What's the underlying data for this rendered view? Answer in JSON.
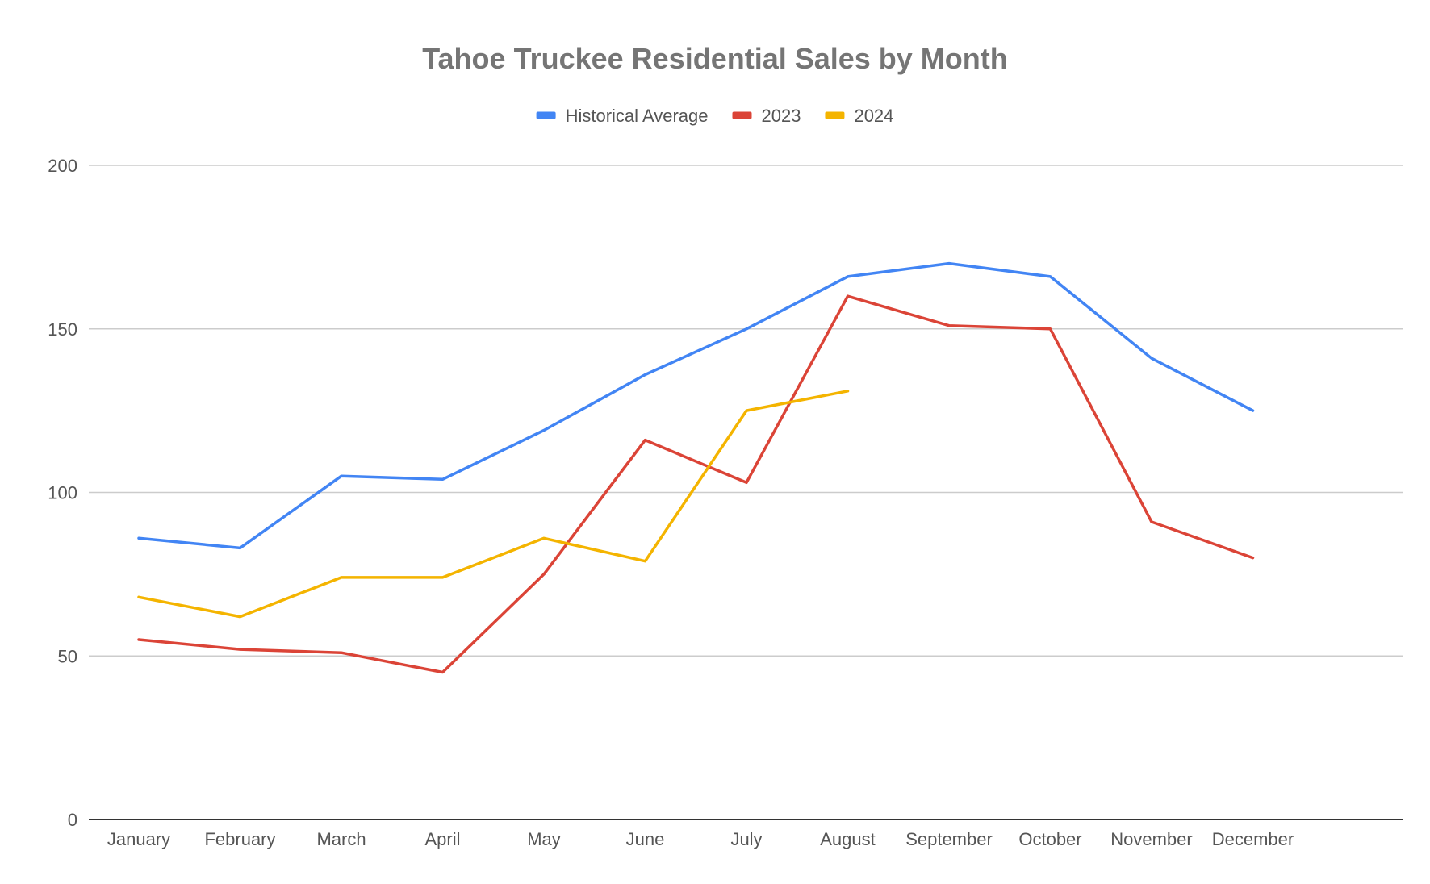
{
  "chart_data": {
    "type": "line",
    "title": "Tahoe Truckee Residential Sales by Month",
    "xlabel": "",
    "ylabel": "",
    "categories": [
      "January",
      "February",
      "March",
      "April",
      "May",
      "June",
      "July",
      "August",
      "September",
      "October",
      "November",
      "December"
    ],
    "ylim": [
      0,
      200
    ],
    "yticks": [
      "0",
      "50",
      "100",
      "150",
      "200"
    ],
    "grid": true,
    "legend_position": "top",
    "series": [
      {
        "name": "Historical Average",
        "color": "#4285F4",
        "values": [
          86,
          83,
          105,
          104,
          119,
          136,
          150,
          166,
          170,
          166,
          141,
          125
        ]
      },
      {
        "name": "2023",
        "color": "#DB4437",
        "values": [
          55,
          52,
          51,
          45,
          75,
          116,
          103,
          160,
          151,
          150,
          91,
          80
        ]
      },
      {
        "name": "2024",
        "color": "#F4B400",
        "values": [
          68,
          62,
          74,
          74,
          86,
          79,
          125,
          131,
          null,
          null,
          null,
          null
        ]
      }
    ]
  }
}
